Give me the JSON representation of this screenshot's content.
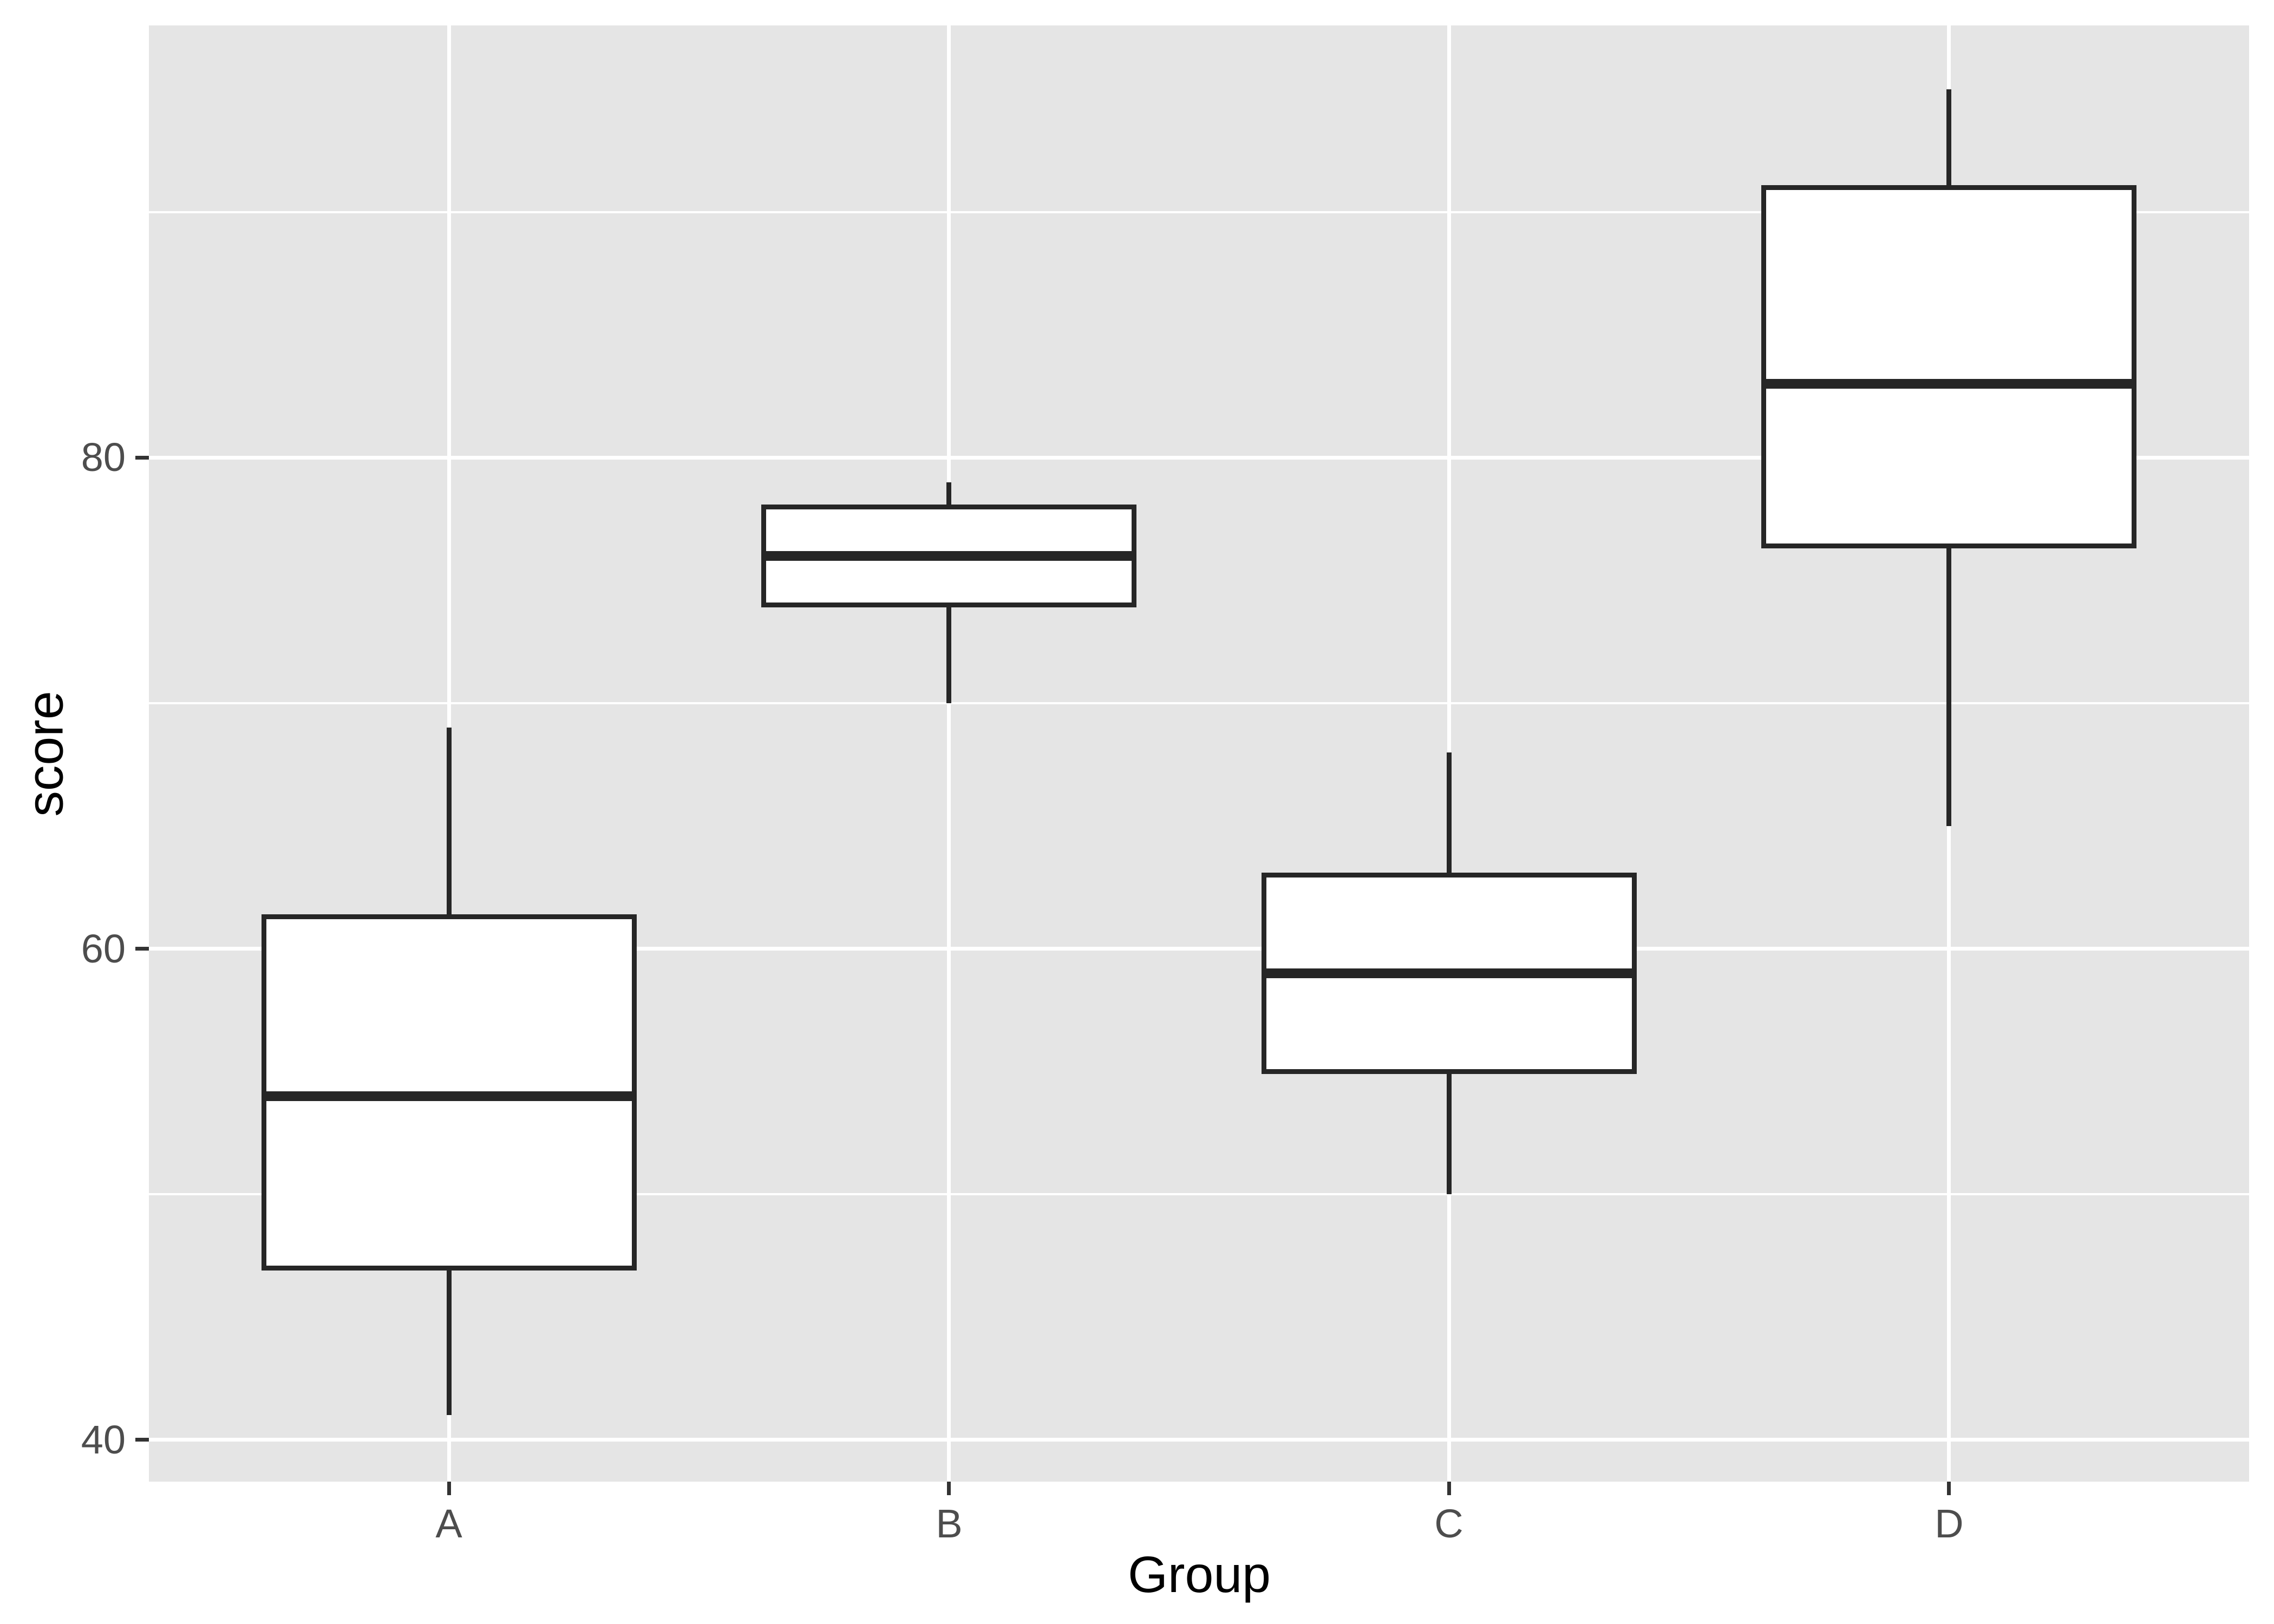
{
  "figure": {
    "background": "#ffffff",
    "panel_background": "#e5e5e5",
    "gridline_color": "#ffffff",
    "box_fill": "#ffffff",
    "box_stroke": "#262626",
    "tick_mark_color": "#333333",
    "axis_text_color": "#4d4d4d",
    "axis_title_color": "#000000"
  },
  "chart_data": {
    "type": "boxplot",
    "title": "",
    "xlabel": "Group",
    "ylabel": "score",
    "categories": [
      "A",
      "B",
      "C",
      "D"
    ],
    "series": [
      {
        "name": "A",
        "min": 41,
        "q1": 47,
        "median": 54,
        "q3": 61.3,
        "max": 69
      },
      {
        "name": "B",
        "min": 70,
        "q1": 74,
        "median": 76,
        "q3": 78,
        "max": 79
      },
      {
        "name": "C",
        "min": 50,
        "q1": 55,
        "median": 59,
        "q3": 63,
        "max": 68
      },
      {
        "name": "D",
        "min": 65,
        "q1": 76.4,
        "median": 83,
        "q3": 91,
        "max": 95
      }
    ],
    "y_ticks": [
      40,
      60,
      80
    ],
    "y_minor_gridlines": [
      50,
      70,
      90
    ],
    "ylim": [
      38.3,
      97.6
    ],
    "grid": true,
    "legend": "none",
    "orientation": "vertical"
  }
}
